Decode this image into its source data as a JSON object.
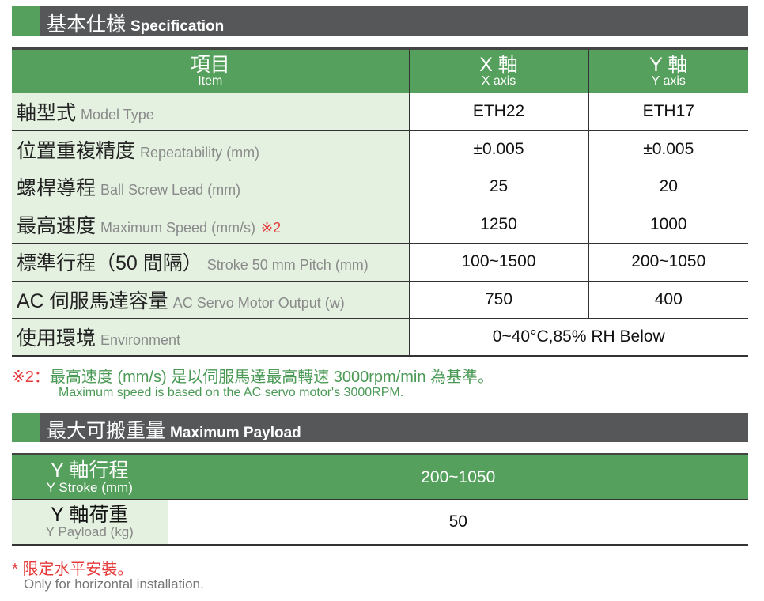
{
  "spec": {
    "title_zh": "基本仕様",
    "title_en": "Specification",
    "header": {
      "item_zh": "項目",
      "item_en": "Item",
      "x_zh": "X 軸",
      "x_en": "X axis",
      "y_zh": "Y 軸",
      "y_en": "Y axis"
    },
    "rows": [
      {
        "zh": "軸型式",
        "en": "Model Type",
        "x": "ETH22",
        "y": "ETH17"
      },
      {
        "zh": "位置重複精度",
        "en": "Repeatability (mm)",
        "x": "±0.005",
        "y": "±0.005"
      },
      {
        "zh": "螺桿導程",
        "en": "Ball Screw Lead (mm)",
        "x": "25",
        "y": "20"
      },
      {
        "zh": "最高速度",
        "en": "Maximum Speed (mm/s)",
        "mark": "※2",
        "x": "1250",
        "y": "1000"
      },
      {
        "zh": "標準行程（50 間隔）",
        "en": "Stroke 50 mm Pitch (mm)",
        "x": "100~1500",
        "y": "200~1050"
      },
      {
        "zh": "AC 伺服馬達容量",
        "en": "AC Servo Motor Output (w)",
        "x": "750",
        "y": "400"
      },
      {
        "zh": "使用環境",
        "en": "Environment",
        "both": "0~40°C,85% RH Below"
      }
    ],
    "note_mark": "※2：",
    "note_zh": "最高速度 (mm/s) 是以伺服馬達最高轉速 3000rpm/min 為基準。",
    "note_en": "Maximum speed is based on the AC servo motor's 3000RPM."
  },
  "payload": {
    "title_zh": "最大可搬重量",
    "title_en": "Maximum Payload",
    "stroke_zh": "Y 軸行程",
    "stroke_en": "Y Stroke (mm)",
    "stroke_val": "200~1050",
    "load_zh": "Y 軸荷重",
    "load_en": "Y Payload (kg)",
    "load_val": "50",
    "note_mark": "*",
    "note_zh": "限定水平安裝。",
    "note_en": "Only for horizontal installation."
  }
}
